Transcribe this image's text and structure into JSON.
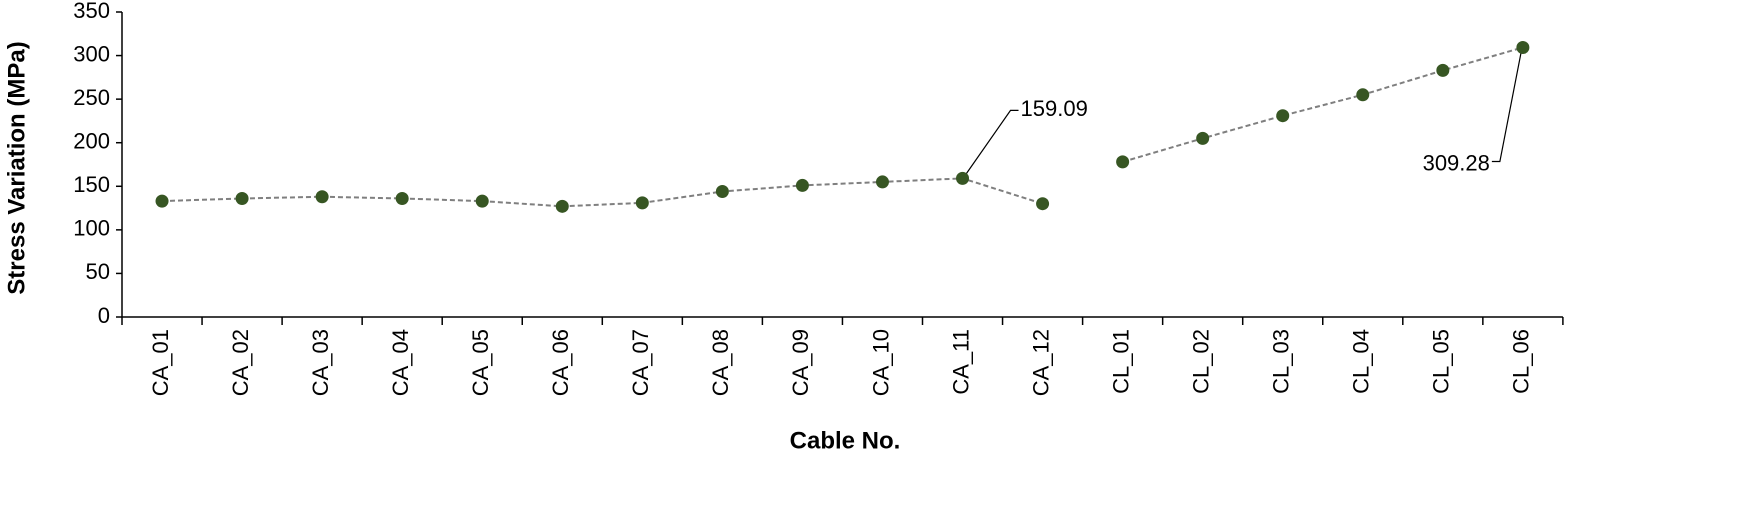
{
  "chart_data": {
    "type": "line",
    "xlabel": "Cable No.",
    "ylabel": "Stress Variation  (MPa)",
    "categories": [
      "CA_01",
      "CA_02",
      "CA_03",
      "CA_04",
      "CA_05",
      "CA_06",
      "CA_07",
      "CA_08",
      "CA_09",
      "CA_10",
      "CA_11",
      "CA_12",
      "CL_01",
      "CL_02",
      "CL_03",
      "CL_04",
      "CL_05",
      "CL_06"
    ],
    "series": [
      {
        "color": "#375623",
        "values": [
          133,
          136,
          138,
          136,
          133,
          127,
          131,
          144,
          151,
          155,
          159.09,
          130,
          null,
          null,
          null,
          null,
          null,
          null
        ],
        "value_labels": [
          null,
          null,
          null,
          null,
          null,
          null,
          null,
          null,
          null,
          null,
          "159.09",
          null,
          null,
          null,
          null,
          null,
          null,
          null
        ]
      },
      {
        "color": "#375623",
        "values": [
          null,
          null,
          null,
          null,
          null,
          null,
          null,
          null,
          null,
          null,
          null,
          null,
          178,
          205,
          231,
          255,
          283,
          309.28
        ],
        "value_labels": [
          null,
          null,
          null,
          null,
          null,
          null,
          null,
          null,
          null,
          null,
          null,
          null,
          null,
          null,
          null,
          null,
          null,
          "309.28"
        ]
      }
    ],
    "line_color": "#7f7f7f",
    "line_style": "dashed",
    "ylim": [
      0,
      350
    ],
    "yticks": [
      0,
      50,
      100,
      150,
      200,
      250,
      300,
      350
    ],
    "grid": false
  }
}
